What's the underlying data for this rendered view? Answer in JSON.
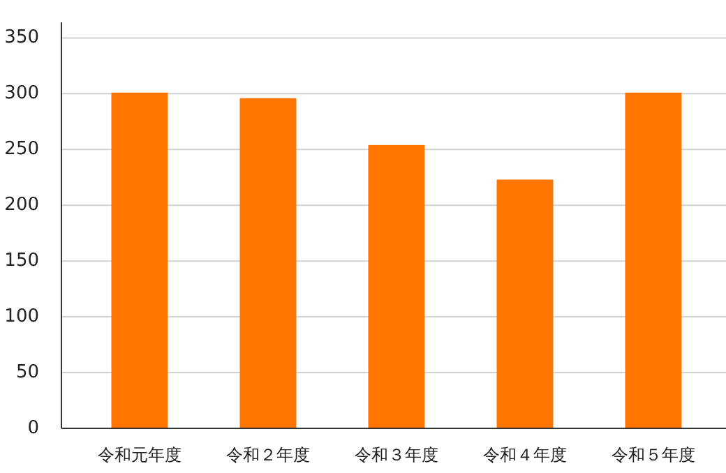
{
  "chart_data": {
    "type": "bar",
    "categories": [
      "令和元年度",
      "令和２年度",
      "令和３年度",
      "令和４年度",
      "令和５年度"
    ],
    "values": [
      301,
      296,
      254,
      223,
      301
    ],
    "color": "#ff7500",
    "ylim": [
      0,
      364
    ],
    "yticks": [
      0,
      50,
      100,
      150,
      200,
      250,
      300,
      350
    ],
    "grid": "y"
  }
}
